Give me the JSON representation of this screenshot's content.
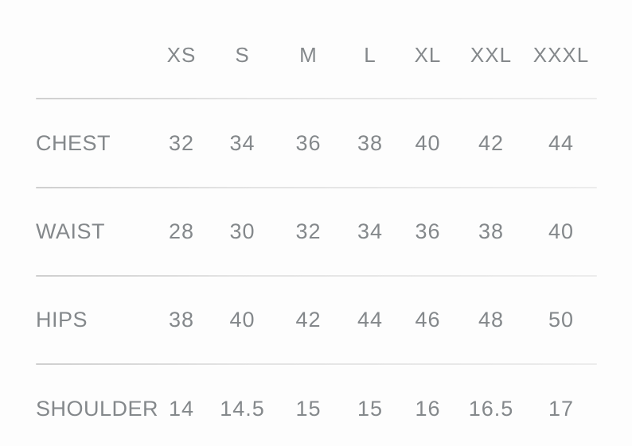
{
  "chart_data": {
    "type": "table",
    "columns": [
      "XS",
      "S",
      "M",
      "L",
      "XL",
      "XXL",
      "XXXL"
    ],
    "rows": [
      {
        "label": "CHEST",
        "values": [
          "32",
          "34",
          "36",
          "38",
          "40",
          "42",
          "44"
        ]
      },
      {
        "label": "WAIST",
        "values": [
          "28",
          "30",
          "32",
          "34",
          "36",
          "38",
          "40"
        ]
      },
      {
        "label": "HIPS",
        "values": [
          "38",
          "40",
          "42",
          "44",
          "46",
          "48",
          "50"
        ]
      },
      {
        "label": "SHOULDER",
        "values": [
          "14",
          "14.5",
          "15",
          "15",
          "16",
          "16.5",
          "17"
        ]
      }
    ]
  },
  "colors": {
    "text": "#84888b",
    "divider": "#e0e0e0",
    "background": "#fdfdfd"
  }
}
